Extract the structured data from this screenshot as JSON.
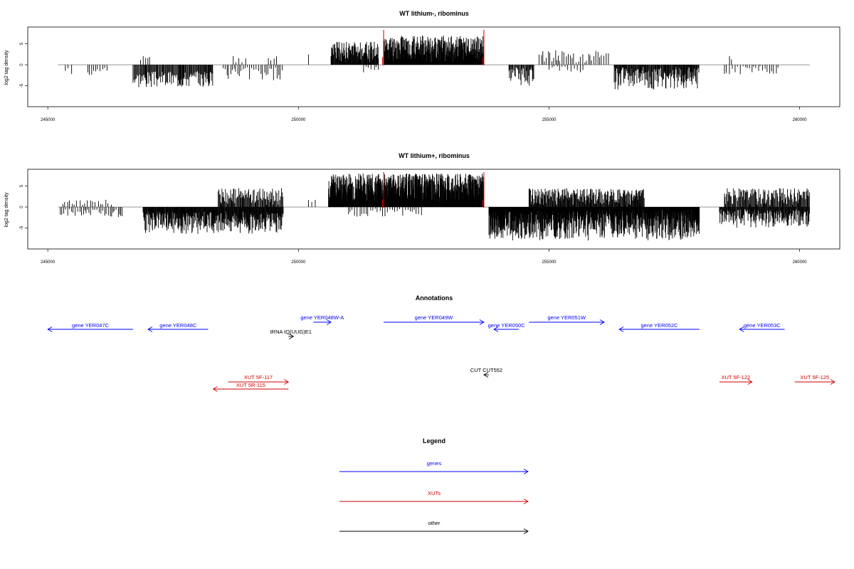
{
  "chart_data": [
    {
      "type": "bar",
      "title": "WT lithium-, ribominus",
      "xlabel": "",
      "ylabel": "log2 tag density",
      "xlim": [
        244600,
        260800
      ],
      "ylim": [
        -10,
        9
      ],
      "x_ticks": [
        245000,
        250000,
        255000,
        260000
      ],
      "x_tick_labels": [
        "245000",
        "250000",
        "255000",
        "260000"
      ],
      "y_ticks": [
        -5,
        0,
        5
      ],
      "y_tick_labels": [
        "-5",
        "0",
        "5"
      ],
      "baseline_range": [
        245200,
        260200
      ],
      "highlight_x": [
        251700,
        253700
      ],
      "highlight_color": "#cc0000",
      "bar_color": "#000000",
      "segments": [
        {
          "from": 245350,
          "to": 245500,
          "spacing": 60,
          "min": -2.5,
          "max": -0.8,
          "seed": 1
        },
        {
          "from": 245800,
          "to": 246200,
          "spacing": 40,
          "min": -3,
          "max": -0.5,
          "seed": 2
        },
        {
          "from": 246700,
          "to": 248300,
          "spacing": 14,
          "min": -5.5,
          "max": -1.5,
          "seed": 3
        },
        {
          "from": 246850,
          "to": 247050,
          "spacing": 45,
          "min": 1,
          "max": 2.6,
          "seed": 4
        },
        {
          "from": 248500,
          "to": 249700,
          "spacing": 38,
          "min": -4.2,
          "max": -0.5,
          "seed": 5
        },
        {
          "from": 248700,
          "to": 249000,
          "spacing": 60,
          "min": 0.5,
          "max": 2.5,
          "seed": 6
        },
        {
          "from": 249400,
          "to": 249600,
          "spacing": 70,
          "min": 0.5,
          "max": 2.2,
          "seed": 7
        },
        {
          "from": 250200,
          "to": 250300,
          "spacing": 80,
          "min": 2,
          "max": 3,
          "seed": 8
        },
        {
          "from": 250650,
          "to": 251600,
          "spacing": 9,
          "min": 0.5,
          "max": 5.5,
          "seed": 9
        },
        {
          "from": 251300,
          "to": 251600,
          "spacing": 50,
          "min": -2,
          "max": -0.3,
          "seed": 10
        },
        {
          "from": 251700,
          "to": 253700,
          "spacing": 6,
          "min": 0.5,
          "max": 7,
          "seed": 11
        },
        {
          "from": 254200,
          "to": 254700,
          "spacing": 14,
          "min": -5,
          "max": -0.5,
          "seed": 12
        },
        {
          "from": 254800,
          "to": 256200,
          "spacing": 38,
          "min": 0.5,
          "max": 3.5,
          "seed": 13
        },
        {
          "from": 255000,
          "to": 255700,
          "spacing": 55,
          "min": -2,
          "max": -0.3,
          "seed": 14
        },
        {
          "from": 256300,
          "to": 258000,
          "spacing": 11,
          "min": -6,
          "max": -0.5,
          "seed": 15
        },
        {
          "from": 258500,
          "to": 259600,
          "spacing": 45,
          "min": -2.5,
          "max": -0.3,
          "seed": 16
        },
        {
          "from": 258600,
          "to": 258700,
          "spacing": 60,
          "min": 0.5,
          "max": 2.2,
          "seed": 17
        }
      ]
    },
    {
      "type": "bar",
      "title": "WT lithium+, ribominus",
      "xlabel": "",
      "ylabel": "log2 tag density",
      "xlim": [
        244600,
        260800
      ],
      "ylim": [
        -10,
        9
      ],
      "x_ticks": [
        245000,
        250000,
        255000,
        260000
      ],
      "x_tick_labels": [
        "245000",
        "250000",
        "255000",
        "260000"
      ],
      "y_ticks": [
        -5,
        0,
        5
      ],
      "y_tick_labels": [
        "-5",
        "0",
        "5"
      ],
      "baseline_range": [
        245200,
        260200
      ],
      "highlight_x": [
        251700,
        253700
      ],
      "highlight_color": "#cc0000",
      "bar_color": "#000000",
      "segments": [
        {
          "from": 245250,
          "to": 246500,
          "spacing": 35,
          "min": -2.5,
          "max": -0.5,
          "seed": 21
        },
        {
          "from": 245300,
          "to": 246300,
          "spacing": 55,
          "min": 0.5,
          "max": 1.8,
          "seed": 22
        },
        {
          "from": 246900,
          "to": 249700,
          "spacing": 9,
          "min": -6.5,
          "max": -1,
          "seed": 23
        },
        {
          "from": 248400,
          "to": 249700,
          "spacing": 14,
          "min": 0.5,
          "max": 4.5,
          "seed": 24
        },
        {
          "from": 250200,
          "to": 250400,
          "spacing": 70,
          "min": 1,
          "max": 2,
          "seed": 25
        },
        {
          "from": 250600,
          "to": 253700,
          "spacing": 4.5,
          "min": 0.5,
          "max": 8,
          "seed": 26
        },
        {
          "from": 251000,
          "to": 252500,
          "spacing": 45,
          "min": -2.5,
          "max": -0.3,
          "seed": 27
        },
        {
          "from": 253800,
          "to": 258000,
          "spacing": 5,
          "min": -8,
          "max": -0.5,
          "seed": 28
        },
        {
          "from": 254600,
          "to": 256900,
          "spacing": 11,
          "min": 0.5,
          "max": 4.5,
          "seed": 29
        },
        {
          "from": 258400,
          "to": 260200,
          "spacing": 10,
          "min": -5,
          "max": -0.5,
          "seed": 30
        },
        {
          "from": 258500,
          "to": 260200,
          "spacing": 14,
          "min": 0.5,
          "max": 4.5,
          "seed": 31
        }
      ]
    }
  ],
  "annotations": {
    "title": "Annotations",
    "features": [
      {
        "label": "gene YER047C",
        "start": 245000,
        "end": 246700,
        "strand": "-",
        "row": 1,
        "color": "#0000ff"
      },
      {
        "label": "gene YER048C",
        "start": 247000,
        "end": 248200,
        "strand": "-",
        "row": 1,
        "color": "#0000ff"
      },
      {
        "label": "gene YER048W-A",
        "start": 250300,
        "end": 250650,
        "strand": "+",
        "row": 0,
        "color": "#0000ff"
      },
      {
        "label": "tRNA tQ(UUG)E1",
        "start": 249800,
        "end": 249900,
        "strand": "+",
        "row": 2,
        "color": "#000000"
      },
      {
        "label": "gene YER049W",
        "start": 251700,
        "end": 253700,
        "strand": "+",
        "row": 0,
        "color": "#0000ff"
      },
      {
        "label": "gene YER050C",
        "start": 253900,
        "end": 254400,
        "strand": "-",
        "row": 1,
        "color": "#0000ff"
      },
      {
        "label": "gene YER051W",
        "start": 254600,
        "end": 256100,
        "strand": "+",
        "row": 0,
        "color": "#0000ff"
      },
      {
        "label": "gene YER052C",
        "start": 256400,
        "end": 258000,
        "strand": "-",
        "row": 1,
        "color": "#0000ff"
      },
      {
        "label": "gene YER053C",
        "start": 258800,
        "end": 259700,
        "strand": "-",
        "row": 1,
        "color": "#0000ff"
      },
      {
        "label": "CUT CUT552",
        "start": 253700,
        "end": 253800,
        "strand": "-",
        "row": 3,
        "color": "#000000"
      },
      {
        "label": "XUT 5F-117",
        "start": 248600,
        "end": 249800,
        "strand": "+",
        "row": 4,
        "color": "#cc0000"
      },
      {
        "label": "XUT 5R-115",
        "start": 248300,
        "end": 249800,
        "strand": "-",
        "row": 5,
        "color": "#cc0000"
      },
      {
        "label": "XUT 5F-122",
        "start": 258400,
        "end": 259050,
        "strand": "+",
        "row": 4,
        "color": "#cc0000"
      },
      {
        "label": "XUT 5F-125",
        "start": 259900,
        "end": 260700,
        "strand": "+",
        "row": 4,
        "color": "#cc0000"
      }
    ]
  },
  "legend": {
    "title": "Legend",
    "items": [
      {
        "label": "genes",
        "color": "#0000ff"
      },
      {
        "label": "XUTs",
        "color": "#cc0000"
      },
      {
        "label": "other",
        "color": "#000000"
      }
    ]
  }
}
